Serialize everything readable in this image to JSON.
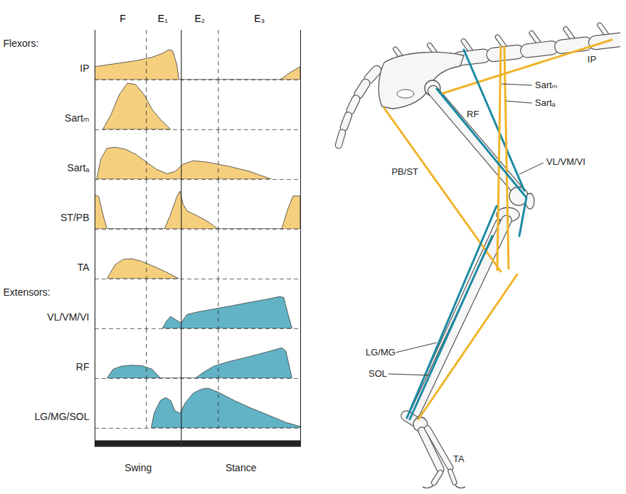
{
  "chart_data": {
    "type": "area",
    "tick_labels": "x",
    "xlim": [
      0,
      100
    ],
    "ylim": [
      0,
      10
    ],
    "xticks": [
      {
        "value": 13.5,
        "label": "F"
      },
      {
        "value": 33,
        "label": "E₁"
      },
      {
        "value": 51,
        "label": "E₂"
      },
      {
        "value": 80,
        "label": "E₃"
      }
    ],
    "phase_boundaries": [
      {
        "value": 25,
        "line_style": "dashed"
      },
      {
        "value": 42,
        "line_style": "solid"
      },
      {
        "value": 60,
        "line_style": "dashed"
      }
    ],
    "phase_bars": [
      {
        "label": "Swing",
        "from": 0,
        "to": 42
      },
      {
        "label": "Stance",
        "from": 42,
        "to": 100
      }
    ],
    "groups": [
      {
        "label": "Flexors:",
        "series": [
          {
            "name": "IP",
            "color": "#f6cf7e",
            "x": [
              0,
              0,
              10,
              20,
              28,
              33,
              36,
              38,
              40,
              41,
              90,
              91,
              95,
              100,
              100
            ],
            "values": [
              0,
              2.6,
              3.2,
              3.8,
              4.5,
              5.3,
              6.0,
              5.8,
              3.0,
              0,
              0,
              0.2,
              1.4,
              2.6,
              0
            ]
          },
          {
            "name": "Sartₘ",
            "color": "#f6cf7e",
            "x": [
              4,
              8,
              12,
              16,
              20,
              24,
              28,
              32,
              37
            ],
            "values": [
              0,
              3,
              7,
              9.3,
              9,
              7,
              4,
              2,
              0
            ]
          },
          {
            "name": "Sartₐ",
            "color": "#f6cf7e",
            "x": [
              1,
              3,
              6,
              10,
              15,
              20,
              25,
              30,
              35,
              39,
              43,
              48,
              55,
              65,
              75,
              86
            ],
            "values": [
              0,
              4,
              6.2,
              6.4,
              6,
              5,
              3.5,
              2,
              1.1,
              1.5,
              3,
              3.7,
              3.4,
              2.6,
              1.6,
              0
            ]
          },
          {
            "name": "ST/PB",
            "color": "#f6cf7e",
            "x": [
              0,
              0,
              2,
              4,
              6,
              34,
              37,
              40,
              41.5,
              43,
              45,
              50,
              55,
              60,
              91,
              94,
              96.5,
              100,
              100
            ],
            "values": [
              0,
              6.9,
              6.5,
              3,
              0,
              0,
              3,
              6.5,
              7.6,
              5,
              3.6,
              2.6,
              1.5,
              0,
              0,
              4,
              6.6,
              6.6,
              0
            ]
          },
          {
            "name": "TA",
            "color": "#f6cf7e",
            "x": [
              6,
              10,
              14,
              18,
              22,
              28,
              34,
              41
            ],
            "values": [
              0,
              2.8,
              3.9,
              4,
              3.6,
              2.6,
              1.5,
              0
            ]
          }
        ]
      },
      {
        "label": "Extensors:",
        "series": [
          {
            "name": "VL/VM/VI",
            "color": "#62b3c6",
            "x": [
              33,
              35,
              37,
              40,
              42,
              45,
              50,
              58,
              66,
              75,
              83,
              90,
              92,
              94,
              96
            ],
            "values": [
              0,
              1.5,
              2.4,
              1.6,
              1.1,
              2.8,
              3.3,
              3.9,
              4.5,
              5.2,
              5.8,
              6.4,
              6.2,
              3,
              0
            ]
          },
          {
            "name": "RF",
            "color": "#62b3c6",
            "x": [
              6,
              9,
              13,
              18,
              23,
              28,
              32,
              49,
              53,
              58,
              65,
              75,
              85,
              91,
              93,
              96
            ],
            "values": [
              0,
              1.8,
              2.4,
              2.6,
              2.5,
              1.8,
              0,
              0,
              1.2,
              2.4,
              3.3,
              4.3,
              5.4,
              6.1,
              5.5,
              0
            ]
          },
          {
            "name": "LG/MG/SOL",
            "color": "#62b3c6",
            "x": [
              27.5,
              29,
              32,
              34.5,
              37,
              39,
              41.5,
              44,
              48,
              52,
              55,
              60,
              68,
              76,
              85,
              93,
              100,
              100
            ],
            "values": [
              0,
              3,
              5.5,
              6.1,
              5.5,
              3.5,
              2.9,
              5,
              7,
              7.8,
              8,
              7.2,
              5.5,
              4,
              2.5,
              1.1,
              0.3,
              0
            ]
          }
        ]
      }
    ]
  },
  "diagram": {
    "muscles": [
      {
        "label": "IP",
        "color": "#f0b429"
      },
      {
        "label": "RF",
        "color": "#1b8aa3"
      },
      {
        "label": "Sartₘ",
        "color": "#f0b429"
      },
      {
        "label": "Sartₐ",
        "color": "#f0b429"
      },
      {
        "label": "VL/VM/VI",
        "color": "#1b8aa3"
      },
      {
        "label": "PB/ST",
        "color": "#f0b429"
      },
      {
        "label": "LG/MG",
        "color": "#1b8aa3"
      },
      {
        "label": "SOL",
        "color": "#1b8aa3"
      },
      {
        "label": "TA",
        "color": "#f0b429"
      }
    ]
  }
}
